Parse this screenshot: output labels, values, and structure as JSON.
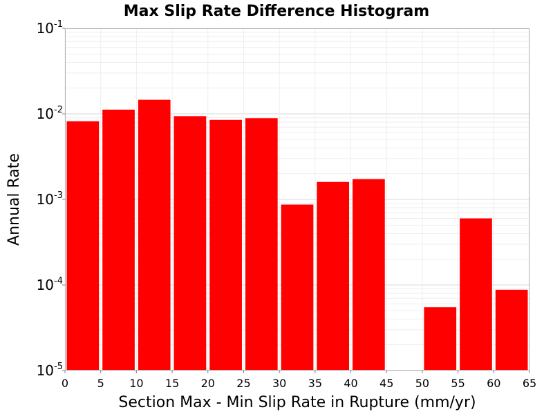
{
  "chart_data": {
    "type": "bar",
    "title": "Max Slip Rate Difference Histogram",
    "xlabel": "Section Max - Min Slip Rate in Rupture (mm/yr)",
    "ylabel": "Annual Rate",
    "yscale": "log",
    "xlim": [
      0,
      65
    ],
    "ylim": [
      1e-05,
      0.1
    ],
    "grid": true,
    "bar_color": "#ff0000",
    "x_ticks": [
      0,
      5,
      10,
      15,
      20,
      25,
      30,
      35,
      40,
      45,
      50,
      55,
      60,
      65
    ],
    "y_ticks": [
      {
        "base": "10",
        "exp": "-5",
        "value": 1e-05
      },
      {
        "base": "10",
        "exp": "-4",
        "value": 0.0001
      },
      {
        "base": "10",
        "exp": "-3",
        "value": 0.001
      },
      {
        "base": "10",
        "exp": "-2",
        "value": 0.01
      },
      {
        "base": "10",
        "exp": "-1",
        "value": 0.1
      }
    ],
    "bin_width": 5,
    "bins": [
      {
        "x": 2.5,
        "value": 0.0082
      },
      {
        "x": 7.5,
        "value": 0.0112
      },
      {
        "x": 12.5,
        "value": 0.0146
      },
      {
        "x": 17.5,
        "value": 0.0094
      },
      {
        "x": 22.5,
        "value": 0.0085
      },
      {
        "x": 27.5,
        "value": 0.0089
      },
      {
        "x": 32.5,
        "value": 0.00087
      },
      {
        "x": 37.5,
        "value": 0.0016
      },
      {
        "x": 42.5,
        "value": 0.00173
      },
      {
        "x": 47.5,
        "value": 0
      },
      {
        "x": 52.5,
        "value": 5.5e-05
      },
      {
        "x": 57.5,
        "value": 0.0006
      },
      {
        "x": 62.5,
        "value": 8.8e-05
      }
    ]
  }
}
